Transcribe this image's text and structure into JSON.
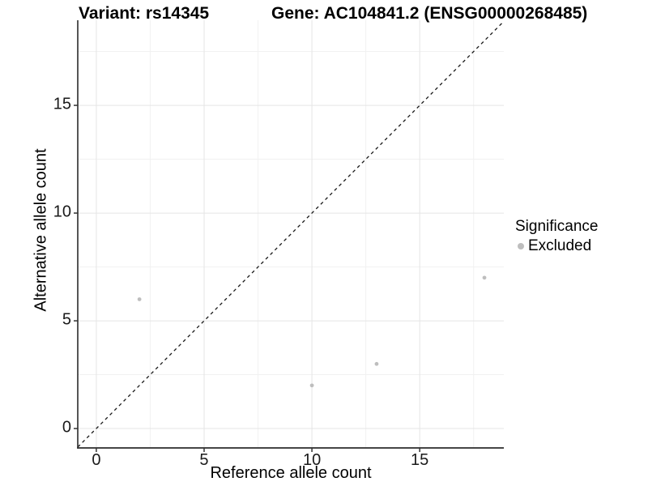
{
  "titles": {
    "variant": "Variant: rs14345",
    "gene": "Gene: AC104841.2 (ENSG00000268485)"
  },
  "axes": {
    "x_label": "Reference allele count",
    "y_label": "Alternative allele count"
  },
  "legend": {
    "title": "Significance",
    "items": [
      {
        "label": "Excluded",
        "color": "#bebebe"
      }
    ]
  },
  "colors": {
    "background": "#ffffff",
    "grid_major": "#e5e5e5",
    "grid_minor": "#f1f1f1",
    "axis_line": "#2b2b2b",
    "tick_mark": "#333333",
    "identity_line": "#1a1a1a",
    "point": "#bebebe"
  },
  "chart_data": {
    "type": "scatter",
    "title": "Variant: rs14345 — Gene: AC104841.2 (ENSG00000268485)",
    "xlabel": "Reference allele count",
    "ylabel": "Alternative allele count",
    "xlim": [
      -0.86,
      18.9
    ],
    "ylim": [
      -0.9,
      18.95
    ],
    "x_ticks": [
      0,
      5,
      10,
      15
    ],
    "x_tick_labels": [
      "0",
      "5",
      "10",
      "15"
    ],
    "y_ticks": [
      0,
      5,
      10,
      15
    ],
    "y_tick_labels": [
      "0",
      "5",
      "10",
      "15"
    ],
    "x_minor_ticks": [
      2.5,
      7.5,
      12.5,
      17.5
    ],
    "y_minor_ticks": [
      2.5,
      7.5,
      12.5,
      17.5
    ],
    "grid": true,
    "legend_position": "right",
    "identity_line": {
      "slope": 1,
      "intercept": 0,
      "style": "dashed"
    },
    "series": [
      {
        "name": "Excluded",
        "color": "#bebebe",
        "points": [
          [
            2,
            6
          ],
          [
            10,
            2
          ],
          [
            13,
            3
          ],
          [
            18,
            7
          ]
        ]
      }
    ]
  }
}
